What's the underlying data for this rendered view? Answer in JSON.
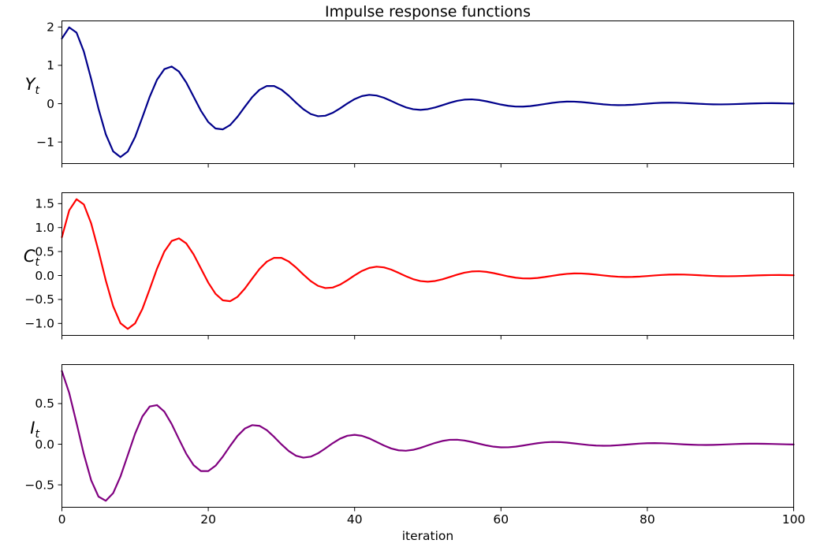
{
  "chart_data": {
    "type": "line",
    "title": "Impulse response functions",
    "xlabel": "iteration",
    "x0": 0,
    "dx": 1,
    "xlim": [
      0,
      100
    ],
    "xticks": [
      0,
      20,
      40,
      60,
      80,
      100
    ],
    "xtick_labels": [
      "0",
      "20",
      "40",
      "60",
      "80",
      "100"
    ],
    "grid": false,
    "legend": null,
    "subplots": [
      {
        "name": "Yt",
        "ylabel": {
          "base": "Y",
          "sub": "t"
        },
        "color": "#00008B",
        "ylim": [
          -1.562,
          2.159
        ],
        "yticks": [
          2,
          1,
          0,
          -1
        ],
        "ytick_labels": [
          "2",
          "1",
          "0",
          "−1"
        ],
        "values": [
          1.7,
          1.99,
          1.853,
          1.3591,
          0.6428,
          -0.1305,
          -0.8003,
          -1.2431,
          -1.393,
          -1.2493,
          -0.8701,
          -0.3548,
          0.1799,
          0.6252,
          0.9009,
          0.9689,
          0.8363,
          0.5497,
          0.1818,
          -0.1857,
          -0.4793,
          -0.6477,
          -0.6697,
          -0.5556,
          -0.3418,
          -0.081,
          0.1699,
          0.3617,
          0.462,
          0.4599,
          0.366,
          0.2083,
          0.0247,
          -0.1455,
          -0.2696,
          -0.3274,
          -0.3139,
          -0.239,
          -0.1238,
          0.0046,
          0.1192,
          0.1985,
          0.2302,
          0.2127,
          0.1544,
          0.0711,
          -0.0181,
          -0.0948,
          -0.1449,
          -0.161,
          -0.1433,
          -0.0987,
          -0.0388,
          0.0229,
          0.0739,
          0.105,
          0.112,
          0.0959,
          0.0622,
          0.0194,
          -0.023,
          -0.0566,
          -0.0755,
          -0.0774,
          -0.0636,
          -0.0385,
          -0.0082,
          0.0207,
          0.0426,
          0.0538,
          0.0531,
          0.0419,
          0.0234,
          0.0021,
          -0.0175,
          -0.0316,
          -0.038,
          -0.0362,
          -0.0273,
          -0.0138,
          0.0011,
          0.0143,
          0.0233,
          0.0267,
          0.0244,
          0.0175,
          0.0078,
          -0.0025,
          -0.0113,
          -0.017,
          -0.0187,
          -0.0165,
          -0.0112,
          -0.0042,
          0.0029,
          0.0087,
          0.0122,
          0.0129,
          0.011,
          0.0071,
          0.0022
        ]
      },
      {
        "name": "Ct",
        "ylabel": {
          "base": "C",
          "sub": "t"
        },
        "color": "#FF0000",
        "ylim": [
          -1.2497,
          1.7273
        ],
        "yticks": [
          1.5,
          1.0,
          0.5,
          0.0,
          -0.5,
          -1.0
        ],
        "ytick_labels": [
          "1.5",
          "1.0",
          "0.5",
          "0.0",
          "−0.5",
          "−1.0"
        ],
        "values": [
          0.8,
          1.36,
          1.592,
          1.4824,
          1.0873,
          0.5142,
          -0.1044,
          -0.6402,
          -0.9945,
          -1.1144,
          -0.9994,
          -0.6961,
          -0.2838,
          0.1439,
          0.5002,
          0.7207,
          0.7751,
          0.669,
          0.4398,
          0.1454,
          -0.1486,
          -0.3834,
          -0.5182,
          -0.5358,
          -0.4445,
          -0.2734,
          -0.0648,
          0.1359,
          0.2894,
          0.3696,
          0.3679,
          0.2928,
          0.1666,
          0.0198,
          -0.1164,
          -0.2157,
          -0.2619,
          -0.2511,
          -0.1912,
          -0.099,
          0.0037,
          0.0954,
          0.1588,
          0.1842,
          0.1702,
          0.1235,
          0.0569,
          -0.0145,
          -0.0758,
          -0.1159,
          -0.1288,
          -0.1146,
          -0.079,
          -0.031,
          0.0183,
          0.0591,
          0.084,
          0.0896,
          0.0767,
          0.0498,
          0.0155,
          -0.0184,
          -0.0453,
          -0.0604,
          -0.0619,
          -0.0509,
          -0.0308,
          -0.0066,
          0.0166,
          0.0341,
          0.043,
          0.0425,
          0.0335,
          0.0187,
          0.0017,
          -0.014,
          -0.0253,
          -0.0304,
          -0.029,
          -0.0218,
          -0.011,
          0.0009,
          0.0114,
          0.0186,
          0.0214,
          0.0195,
          0.014,
          0.0062,
          -0.002,
          -0.009,
          -0.0136,
          -0.015,
          -0.0132,
          -0.009,
          -0.0034,
          0.0023,
          0.007,
          0.0098,
          0.0103,
          0.0088,
          0.0057
        ]
      },
      {
        "name": "It",
        "ylabel": {
          "base": "I",
          "sub": "t"
        },
        "color": "#800080",
        "ylim": [
          -0.7757,
          0.9798
        ],
        "yticks": [
          0.5,
          0.0,
          -0.5
        ],
        "ytick_labels": [
          "0.5",
          "0.0",
          "−0.5"
        ],
        "values": [
          0.9,
          0.63,
          0.261,
          -0.1233,
          -0.4445,
          -0.6447,
          -0.6959,
          -0.6028,
          -0.3985,
          -0.1349,
          0.1293,
          0.3413,
          0.4638,
          0.4812,
          0.4008,
          0.2481,
          0.0612,
          -0.1193,
          -0.2579,
          -0.3311,
          -0.3308,
          -0.2642,
          -0.1516,
          -0.0198,
          0.1027,
          0.1924,
          0.2347,
          0.2258,
          0.1726,
          0.0903,
          -0.0019,
          -0.0845,
          -0.1419,
          -0.1652,
          -0.1532,
          -0.1117,
          -0.052,
          0.0122,
          0.0674,
          0.1037,
          0.1156,
          0.1031,
          0.0714,
          0.0285,
          -0.0158,
          -0.0525,
          -0.075,
          -0.0803,
          -0.069,
          -0.0451,
          -0.0145,
          0.0159,
          0.0401,
          0.0539,
          0.0555,
          0.0459,
          0.028,
          0.0063,
          -0.0145,
          -0.0303,
          -0.0385,
          -0.0382,
          -0.0302,
          -0.017,
          -0.0017,
          0.0124,
          0.0226,
          0.0273,
          0.026,
          0.0197,
          0.0101,
          -0.0006,
          -0.0101,
          -0.0167,
          -0.0192,
          -0.0176,
          -0.0127,
          -0.0058,
          0.0016,
          0.008,
          0.0122,
          0.0134,
          0.0119,
          0.0081,
          0.0031,
          -0.0021,
          -0.0062,
          -0.0087,
          -0.0093,
          -0.0079,
          -0.0051,
          -0.0015,
          0.002,
          0.0048,
          0.0063,
          0.0064,
          0.0052,
          0.0032,
          0.0006,
          -0.0017,
          -0.0035
        ]
      }
    ]
  }
}
